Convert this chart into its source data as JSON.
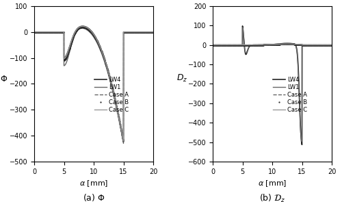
{
  "left_xlim": [
    0,
    20
  ],
  "left_ylim": [
    -500,
    100
  ],
  "right_xlim": [
    0,
    20
  ],
  "right_ylim": [
    -600,
    200
  ],
  "left_yticks": [
    -500,
    -400,
    -300,
    -200,
    -100,
    0,
    100
  ],
  "right_yticks": [
    -600,
    -500,
    -400,
    -300,
    -200,
    -100,
    0,
    100,
    200
  ],
  "xticks": [
    0,
    5,
    10,
    15,
    20
  ],
  "left_ylabel": "$\\Phi$",
  "right_ylabel": "$D_z$",
  "xlabel": "$\\alpha$ [mm]",
  "left_caption": "(a) $\\Phi$",
  "right_caption": "(b) $\\mathcal{D}_z$",
  "legend_labels": [
    "LW4",
    "LW1",
    "Case A",
    "Case B",
    "Case C"
  ],
  "col_dark": "#222222",
  "col_mid": "#666666",
  "col_light": "#999999"
}
